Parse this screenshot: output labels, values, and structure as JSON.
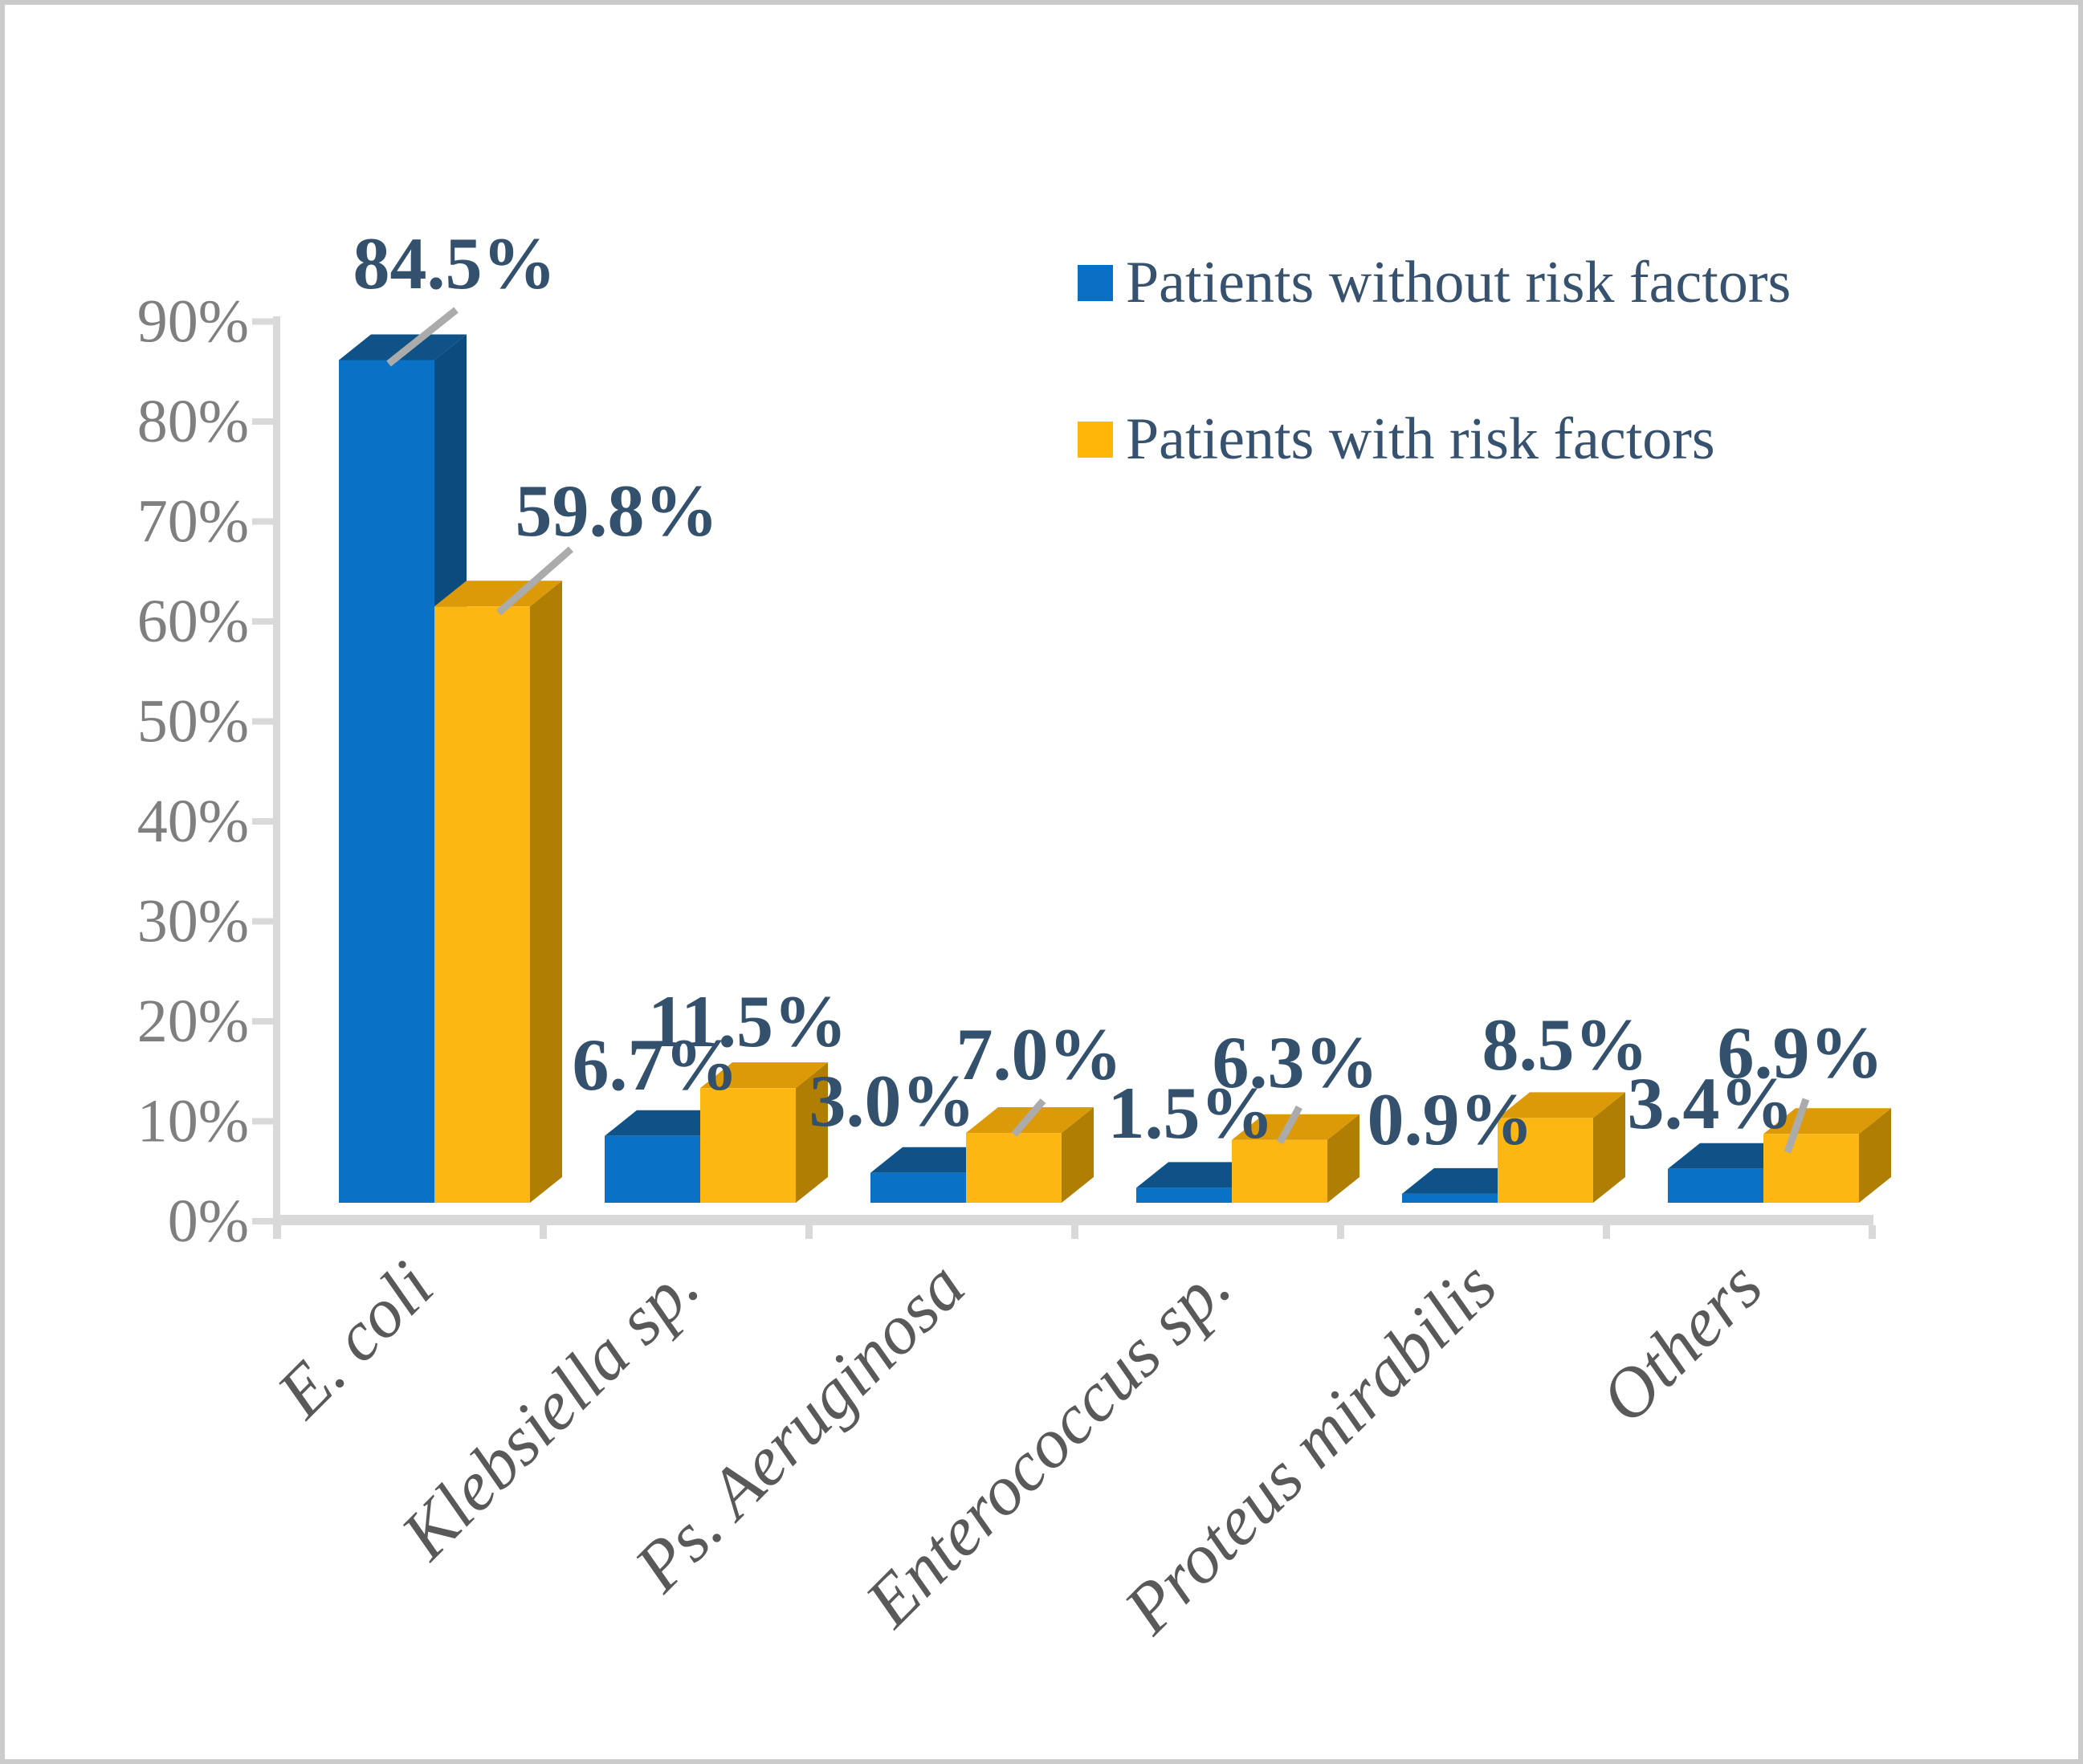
{
  "chart_data": {
    "type": "bar",
    "title": "",
    "xlabel": "",
    "ylabel": "",
    "categories": [
      "E. coli",
      "Klebsiella sp.",
      "Ps. Aeruginosa",
      "Enterococcus sp.",
      "Proteus mirabilis",
      "Others"
    ],
    "series": [
      {
        "name": "Patients without risk factors",
        "color": "#0A72C6",
        "color_top": "#0E5287",
        "color_side": "#0B4B7D",
        "legend_color": "#0A70C6",
        "values": [
          84.5,
          6.7,
          3.0,
          1.5,
          0.9,
          3.4
        ],
        "data_labels": [
          "84.5%",
          "6.7%",
          "3.0%",
          "1.5%",
          "0.9%",
          "3.4%"
        ]
      },
      {
        "name": "Patients with risk factors",
        "color": "#FCB713",
        "color_top": "#DC9A08",
        "color_side": "#B17E04",
        "legend_color": "#FFB608",
        "values": [
          59.8,
          11.5,
          7.0,
          6.3,
          8.5,
          6.9
        ],
        "data_labels": [
          "59.8%",
          "11.5%",
          "7.0%",
          "6.3%",
          "8.5%",
          "6.9%"
        ]
      }
    ],
    "yticks": [
      "0%",
      "10%",
      "20%",
      "30%",
      "40%",
      "50%",
      "60%",
      "70%",
      "80%",
      "90%"
    ],
    "ylim": [
      0,
      90
    ],
    "ytick_step": 10,
    "grid": false,
    "legend_position": "top-right",
    "bar_3d": true,
    "colors": {
      "data_label": "#33506C",
      "legend_text": "#37526E",
      "axis": "#D9D9D9",
      "ytick_label": "#7F7F7F",
      "xtick_label": "#595959",
      "leader_line": "#ABABAB"
    }
  }
}
